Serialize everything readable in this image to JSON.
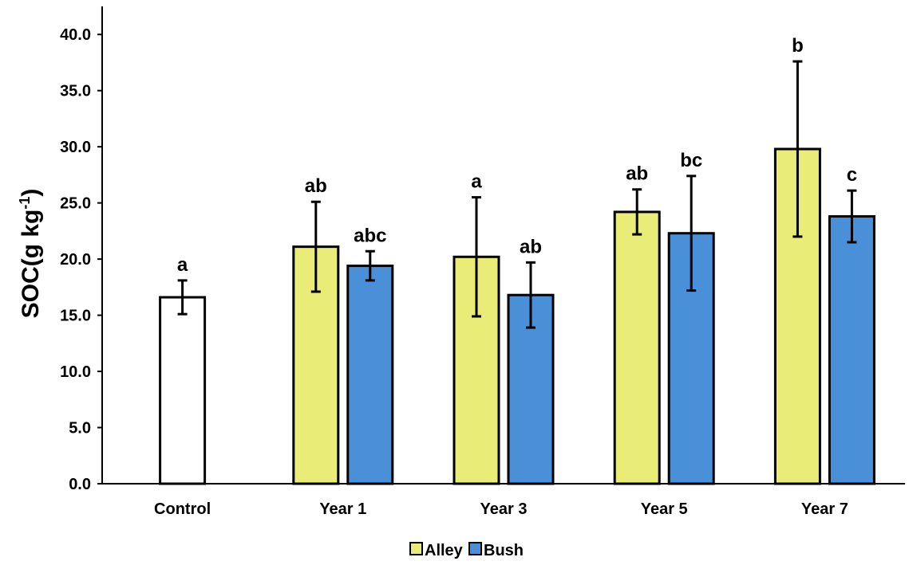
{
  "chart_data": {
    "type": "bar",
    "ylabel": "SOC(g kg",
    "ylabel_sup": "-1",
    "ylabel_end": ")",
    "ylim": [
      0,
      42.5
    ],
    "yticks": [
      "0.0",
      "5.0",
      "10.0",
      "15.0",
      "20.0",
      "25.0",
      "30.0",
      "35.0",
      "40.0"
    ],
    "grid": false,
    "legend_position": "bottom",
    "categories": [
      "Control",
      "Year 1",
      "Year 3",
      "Year 5",
      "Year 7"
    ],
    "control": {
      "value": 16.6,
      "error": 1.5,
      "label": "a",
      "color": "#ffffff"
    },
    "series": [
      {
        "name": "Alley",
        "color": "#eaec78",
        "values": [
          null,
          21.1,
          20.2,
          24.2,
          29.8
        ],
        "errors": [
          null,
          4.0,
          5.3,
          2.0,
          7.8
        ],
        "labels": [
          "",
          "ab",
          "a",
          "ab",
          "b"
        ]
      },
      {
        "name": "Bush",
        "color": "#4a90d9",
        "values": [
          null,
          19.4,
          16.8,
          22.3,
          23.8
        ],
        "errors": [
          null,
          1.3,
          2.9,
          5.1,
          2.3
        ],
        "labels": [
          "",
          "abc",
          "ab",
          "bc",
          "c"
        ]
      }
    ]
  }
}
